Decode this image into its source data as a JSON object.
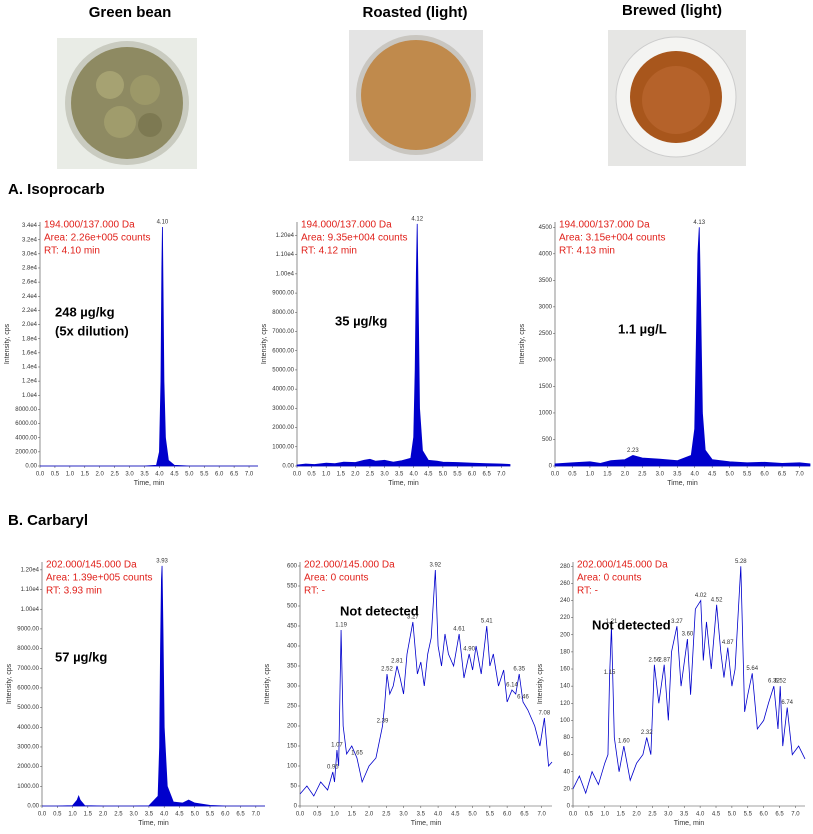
{
  "photos": [
    "Green bean",
    "Roasted (light)",
    "Brewed (light)"
  ],
  "sections": [
    "A. Isoprocarb",
    "B. Carbaryl"
  ],
  "chart_data": [
    {
      "type": "area",
      "x_label": "Time, min",
      "y_label": "Intensity, cps",
      "color": "#0000cc",
      "annotation": [
        "194.000/137.000 Da",
        "Area: 2.26e+005 counts",
        "RT: 4.10 min"
      ],
      "note": [
        "248 µg/kg",
        "(5x dilution)"
      ],
      "peaks": [
        {
          "x": 4.1,
          "label": "4.10",
          "y": 33800
        }
      ],
      "xlim": [
        0,
        7.3
      ],
      "ylim": [
        0,
        34500
      ],
      "xticks": [
        {
          "value": 0,
          "label": "0.0"
        },
        0.5,
        {
          "value": 1,
          "label": "1.0"
        },
        1.5,
        {
          "value": 2,
          "label": "2.0"
        },
        2.5,
        {
          "value": 3,
          "label": "3.0"
        },
        3.5,
        {
          "value": 4,
          "label": "4.0"
        },
        4.5,
        {
          "value": 5,
          "label": "5.0"
        },
        5.5,
        {
          "value": 6,
          "label": "6.0"
        },
        6.5,
        {
          "value": 7,
          "label": "7.0"
        }
      ],
      "yticks": [
        {
          "value": 0,
          "label": "0.00"
        },
        {
          "value": 2000,
          "label": "2000.00"
        },
        {
          "value": 4000,
          "label": "4000.00"
        },
        {
          "value": 6000,
          "label": "6000.00"
        },
        {
          "value": 8000,
          "label": "8000.00"
        },
        {
          "value": 10000,
          "label": "1.0e4"
        },
        {
          "value": 12000,
          "label": "1.2e4"
        },
        {
          "value": 14000,
          "label": "1.4e4"
        },
        {
          "value": 16000,
          "label": "1.6e4"
        },
        {
          "value": 18000,
          "label": "1.8e4"
        },
        {
          "value": 20000,
          "label": "2.0e4"
        },
        {
          "value": 22000,
          "label": "2.2e4"
        },
        {
          "value": 24000,
          "label": "2.4e4"
        },
        {
          "value": 26000,
          "label": "2.6e4"
        },
        {
          "value": 28000,
          "label": "2.8e4"
        },
        {
          "value": 30000,
          "label": "3.0e4"
        },
        {
          "value": 32000,
          "label": "3.2e4"
        },
        {
          "value": 34000,
          "label": "3.4e4"
        }
      ],
      "x": [
        0,
        0.5,
        1,
        1.5,
        2,
        2.5,
        3,
        3.5,
        3.9,
        4.0,
        4.05,
        4.08,
        4.1,
        4.12,
        4.15,
        4.2,
        4.3,
        4.5,
        5,
        5.5,
        6,
        6.5,
        7,
        7.3
      ],
      "values": [
        0,
        0,
        0,
        0,
        0,
        0,
        0,
        0,
        100,
        2000,
        12000,
        28000,
        33800,
        25000,
        12000,
        4000,
        800,
        100,
        0,
        0,
        0,
        0,
        0,
        0
      ]
    },
    {
      "type": "area",
      "x_label": "Time, min",
      "y_label": "Intensity, cps",
      "color": "#0000cc",
      "annotation": [
        "194.000/137.000 Da",
        "Area: 9.35e+004 counts",
        "RT: 4.12 min"
      ],
      "note": [
        "35 µg/kg"
      ],
      "peaks": [
        {
          "x": 4.12,
          "label": "4.12",
          "y": 12600
        }
      ],
      "xlim": [
        0,
        7.3
      ],
      "ylim": [
        0,
        12700
      ],
      "xticks": [
        {
          "value": 0,
          "label": "0.0"
        },
        0.5,
        {
          "value": 1,
          "label": "1.0"
        },
        1.5,
        {
          "value": 2,
          "label": "2.0"
        },
        2.5,
        {
          "value": 3,
          "label": "3.0"
        },
        3.5,
        {
          "value": 4,
          "label": "4.0"
        },
        4.5,
        {
          "value": 5,
          "label": "5.0"
        },
        5.5,
        {
          "value": 6,
          "label": "6.0"
        },
        6.5,
        {
          "value": 7,
          "label": "7.0"
        }
      ],
      "yticks": [
        {
          "value": 0,
          "label": "0.00"
        },
        {
          "value": 1000,
          "label": "1000.00"
        },
        {
          "value": 2000,
          "label": "2000.00"
        },
        {
          "value": 3000,
          "label": "3000.00"
        },
        {
          "value": 4000,
          "label": "4000.00"
        },
        {
          "value": 5000,
          "label": "5000.00"
        },
        {
          "value": 6000,
          "label": "6000.00"
        },
        {
          "value": 7000,
          "label": "7000.00"
        },
        {
          "value": 8000,
          "label": "8000.00"
        },
        {
          "value": 9000,
          "label": "9000.00"
        },
        {
          "value": 10000,
          "label": "1.00e4"
        },
        {
          "value": 11000,
          "label": "1.10e4"
        },
        {
          "value": 12000,
          "label": "1.20e4"
        }
      ],
      "x": [
        0,
        0.3,
        0.6,
        1,
        1.3,
        1.6,
        2,
        2.3,
        2.5,
        2.7,
        3,
        3.3,
        3.6,
        3.9,
        4.0,
        4.05,
        4.09,
        4.12,
        4.15,
        4.2,
        4.3,
        4.5,
        4.8,
        5,
        5.5,
        6,
        6.5,
        7,
        7.3
      ],
      "values": [
        50,
        100,
        80,
        150,
        120,
        200,
        180,
        300,
        350,
        250,
        300,
        200,
        280,
        400,
        1500,
        5000,
        10000,
        12600,
        9000,
        3000,
        800,
        300,
        250,
        200,
        180,
        150,
        120,
        100,
        80
      ]
    },
    {
      "type": "area",
      "x_label": "Time, min",
      "y_label": "Intensity, cps",
      "color": "#0000cc",
      "annotation": [
        "194.000/137.000 Da",
        "Area: 3.15e+004 counts",
        "RT: 4.13 min"
      ],
      "note": [
        "1.1 µg/L"
      ],
      "peaks": [
        {
          "x": 4.13,
          "label": "4.13",
          "y": 4500
        },
        {
          "x": 2.23,
          "label": "2.23",
          "y": 200
        }
      ],
      "xlim": [
        0,
        7.3
      ],
      "ylim": [
        0,
        4600
      ],
      "xticks": [
        {
          "value": 0,
          "label": "0.0"
        },
        0.5,
        {
          "value": 1,
          "label": "1.0"
        },
        1.5,
        {
          "value": 2,
          "label": "2.0"
        },
        2.5,
        {
          "value": 3,
          "label": "3.0"
        },
        3.5,
        {
          "value": 4,
          "label": "4.0"
        },
        4.5,
        {
          "value": 5,
          "label": "5.0"
        },
        5.5,
        {
          "value": 6,
          "label": "6.0"
        },
        6.5,
        {
          "value": 7,
          "label": "7.0"
        }
      ],
      "yticks": [
        0,
        500,
        1000,
        1500,
        2000,
        2500,
        3000,
        3500,
        4000,
        4500
      ],
      "x": [
        0,
        0.5,
        1.0,
        1.3,
        1.6,
        2.0,
        2.23,
        2.5,
        3.0,
        3.5,
        3.9,
        4.0,
        4.05,
        4.09,
        4.13,
        4.17,
        4.22,
        4.3,
        4.5,
        5,
        5.5,
        6,
        6.5,
        7,
        7.3
      ],
      "values": [
        40,
        60,
        80,
        50,
        100,
        120,
        200,
        150,
        130,
        100,
        200,
        700,
        2500,
        4000,
        4500,
        3000,
        1000,
        300,
        120,
        80,
        60,
        70,
        50,
        60,
        40
      ]
    },
    {
      "type": "area",
      "x_label": "Time, min",
      "y_label": "Intensity, cps",
      "color": "#0000cc",
      "annotation": [
        "202.000/145.000 Da",
        "Area: 1.39e+005 counts",
        "RT: 3.93 min"
      ],
      "note": [
        "57 µg/kg"
      ],
      "peaks": [
        {
          "x": 3.93,
          "label": "3.93",
          "y": 12200
        }
      ],
      "xlim": [
        0,
        7.3
      ],
      "ylim": [
        0,
        12400
      ],
      "xticks": [
        {
          "value": 0,
          "label": "0.0"
        },
        0.5,
        {
          "value": 1,
          "label": "1.0"
        },
        1.5,
        {
          "value": 2,
          "label": "2.0"
        },
        2.5,
        {
          "value": 3,
          "label": "3.0"
        },
        3.5,
        {
          "value": 4,
          "label": "4.0"
        },
        4.5,
        {
          "value": 5,
          "label": "5.0"
        },
        5.5,
        {
          "value": 6,
          "label": "6.0"
        },
        6.5,
        {
          "value": 7,
          "label": "7.0"
        }
      ],
      "yticks": [
        {
          "value": 0,
          "label": "0.00"
        },
        {
          "value": 1000,
          "label": "1000.00"
        },
        {
          "value": 2000,
          "label": "2000.00"
        },
        {
          "value": 3000,
          "label": "3000.00"
        },
        {
          "value": 4000,
          "label": "4000.00"
        },
        {
          "value": 5000,
          "label": "5000.00"
        },
        {
          "value": 6000,
          "label": "6000.00"
        },
        {
          "value": 7000,
          "label": "7000.00"
        },
        {
          "value": 8000,
          "label": "8000.00"
        },
        {
          "value": 9000,
          "label": "9000.00"
        },
        {
          "value": 10000,
          "label": "1.00e4"
        },
        {
          "value": 11000,
          "label": "1.10e4"
        },
        {
          "value": 12000,
          "label": "1.20e4"
        }
      ],
      "x": [
        0,
        0.5,
        1.0,
        1.15,
        1.2,
        1.25,
        1.4,
        2,
        2.5,
        3,
        3.5,
        3.8,
        3.85,
        3.88,
        3.91,
        3.93,
        3.96,
        4.0,
        4.1,
        4.3,
        4.6,
        4.8,
        5.0,
        5.5,
        6,
        6.5,
        7,
        7.3
      ],
      "values": [
        0,
        0,
        20,
        300,
        500,
        300,
        20,
        0,
        0,
        0,
        10,
        500,
        3000,
        8000,
        11500,
        12200,
        9000,
        4000,
        1000,
        200,
        150,
        300,
        150,
        30,
        0,
        0,
        0,
        0
      ]
    },
    {
      "type": "line",
      "x_label": "Time, min",
      "y_label": "Intensity, cps",
      "color": "#0000cc",
      "annotation": [
        "202.000/145.000 Da",
        "Area: 0 counts",
        "RT: -"
      ],
      "note": [
        "Not detected"
      ],
      "peaks": [
        {
          "x": 0.95,
          "label": "0.95",
          "y": 85
        },
        {
          "x": 1.07,
          "label": "1.07",
          "y": 140
        },
        {
          "x": 1.19,
          "label": "1.19",
          "y": 440
        },
        {
          "x": 1.65,
          "label": "1.65",
          "y": 120
        },
        {
          "x": 2.39,
          "label": "2.39",
          "y": 200
        },
        {
          "x": 2.52,
          "label": "2.52",
          "y": 330
        },
        {
          "x": 2.81,
          "label": "2.81",
          "y": 350
        },
        {
          "x": 3.27,
          "label": "3.27",
          "y": 460
        },
        {
          "x": 3.92,
          "label": "3.92",
          "y": 590
        },
        {
          "x": 4.61,
          "label": "4.61",
          "y": 430
        },
        {
          "x": 4.9,
          "label": "4.90",
          "y": 380
        },
        {
          "x": 5.41,
          "label": "5.41",
          "y": 450
        },
        {
          "x": 6.14,
          "label": "6.14",
          "y": 290
        },
        {
          "x": 6.35,
          "label": "6.35",
          "y": 330
        },
        {
          "x": 6.46,
          "label": "6.46",
          "y": 260
        },
        {
          "x": 7.08,
          "label": "7.08",
          "y": 220
        }
      ],
      "xlim": [
        0,
        7.3
      ],
      "ylim": [
        0,
        610
      ],
      "xticks": [
        {
          "value": 0,
          "label": "0.0"
        },
        0.5,
        {
          "value": 1,
          "label": "1.0"
        },
        1.5,
        {
          "value": 2,
          "label": "2.0"
        },
        2.5,
        {
          "value": 3,
          "label": "3.0"
        },
        3.5,
        {
          "value": 4,
          "label": "4.0"
        },
        4.5,
        {
          "value": 5,
          "label": "5.0"
        },
        5.5,
        {
          "value": 6,
          "label": "6.0"
        },
        6.5,
        {
          "value": 7,
          "label": "7.0"
        }
      ],
      "yticks": [
        0,
        50,
        100,
        150,
        200,
        250,
        300,
        350,
        400,
        450,
        500,
        550,
        600
      ],
      "x": [
        0,
        0.2,
        0.4,
        0.6,
        0.8,
        0.95,
        1.0,
        1.07,
        1.12,
        1.19,
        1.25,
        1.35,
        1.5,
        1.65,
        1.8,
        2.0,
        2.2,
        2.39,
        2.45,
        2.52,
        2.6,
        2.7,
        2.81,
        2.9,
        3.0,
        3.1,
        3.27,
        3.4,
        3.5,
        3.6,
        3.7,
        3.8,
        3.92,
        4.0,
        4.1,
        4.2,
        4.3,
        4.45,
        4.61,
        4.75,
        4.9,
        5.0,
        5.1,
        5.25,
        5.41,
        5.5,
        5.6,
        5.75,
        5.9,
        6.0,
        6.14,
        6.25,
        6.35,
        6.46,
        6.6,
        6.8,
        6.95,
        7.08,
        7.2,
        7.3
      ],
      "values": [
        30,
        50,
        25,
        60,
        40,
        85,
        60,
        140,
        100,
        440,
        200,
        130,
        150,
        120,
        60,
        100,
        120,
        200,
        250,
        330,
        280,
        300,
        350,
        320,
        280,
        380,
        460,
        330,
        360,
        300,
        380,
        420,
        590,
        400,
        350,
        430,
        380,
        350,
        430,
        320,
        380,
        340,
        400,
        330,
        450,
        350,
        380,
        300,
        340,
        260,
        290,
        280,
        330,
        260,
        240,
        200,
        150,
        220,
        100,
        110
      ]
    },
    {
      "type": "line",
      "x_label": "Time, min",
      "y_label": "Intensity, cps",
      "color": "#0000cc",
      "annotation": [
        "202.000/145.000 Da",
        "Area: 0 counts",
        "RT: -"
      ],
      "note": [
        "Not detected"
      ],
      "peaks": [
        {
          "x": 1.21,
          "label": "1.21",
          "y": 210
        },
        {
          "x": 1.15,
          "label": "1.15",
          "y": 150
        },
        {
          "x": 1.6,
          "label": "1.60",
          "y": 70
        },
        {
          "x": 2.32,
          "label": "2.32",
          "y": 80
        },
        {
          "x": 2.56,
          "label": "2.56",
          "y": 165
        },
        {
          "x": 2.87,
          "label": "2.87",
          "y": 165
        },
        {
          "x": 3.27,
          "label": "3.27",
          "y": 210
        },
        {
          "x": 3.6,
          "label": "3.60",
          "y": 195
        },
        {
          "x": 4.02,
          "label": "4.02",
          "y": 240
        },
        {
          "x": 4.52,
          "label": "4.52",
          "y": 235
        },
        {
          "x": 4.87,
          "label": "4.87",
          "y": 185
        },
        {
          "x": 5.28,
          "label": "5.28",
          "y": 280
        },
        {
          "x": 5.64,
          "label": "5.64",
          "y": 155
        },
        {
          "x": 6.32,
          "label": "6.32",
          "y": 140
        },
        {
          "x": 6.52,
          "label": "6.52",
          "y": 140
        },
        {
          "x": 6.74,
          "label": "6.74",
          "y": 115
        }
      ],
      "xlim": [
        0,
        7.3
      ],
      "ylim": [
        0,
        285
      ],
      "xticks": [
        {
          "value": 0,
          "label": "0.0"
        },
        0.5,
        {
          "value": 1,
          "label": "1.0"
        },
        1.5,
        {
          "value": 2,
          "label": "2.0"
        },
        2.5,
        {
          "value": 3,
          "label": "3.0"
        },
        3.5,
        {
          "value": 4,
          "label": "4.0"
        },
        4.5,
        {
          "value": 5,
          "label": "5.0"
        },
        5.5,
        {
          "value": 6,
          "label": "6.0"
        },
        6.5,
        {
          "value": 7,
          "label": "7.0"
        }
      ],
      "yticks": [
        0,
        20,
        40,
        60,
        80,
        100,
        120,
        140,
        160,
        180,
        200,
        220,
        240,
        260,
        280
      ],
      "x": [
        0,
        0.2,
        0.4,
        0.6,
        0.8,
        1.0,
        1.1,
        1.15,
        1.21,
        1.3,
        1.45,
        1.6,
        1.8,
        2.0,
        2.2,
        2.32,
        2.45,
        2.56,
        2.7,
        2.87,
        3.0,
        3.1,
        3.27,
        3.4,
        3.6,
        3.7,
        3.85,
        4.02,
        4.1,
        4.2,
        4.35,
        4.52,
        4.65,
        4.75,
        4.87,
        5.0,
        5.1,
        5.28,
        5.4,
        5.5,
        5.64,
        5.8,
        6.0,
        6.15,
        6.32,
        6.45,
        6.52,
        6.6,
        6.74,
        6.9,
        7.1,
        7.3
      ],
      "values": [
        20,
        35,
        15,
        40,
        25,
        50,
        60,
        150,
        210,
        80,
        40,
        70,
        30,
        50,
        60,
        80,
        60,
        165,
        120,
        165,
        100,
        180,
        210,
        140,
        195,
        130,
        230,
        240,
        170,
        215,
        160,
        235,
        180,
        150,
        185,
        140,
        160,
        280,
        110,
        130,
        155,
        90,
        100,
        120,
        140,
        90,
        140,
        70,
        115,
        60,
        70,
        55
      ]
    }
  ]
}
